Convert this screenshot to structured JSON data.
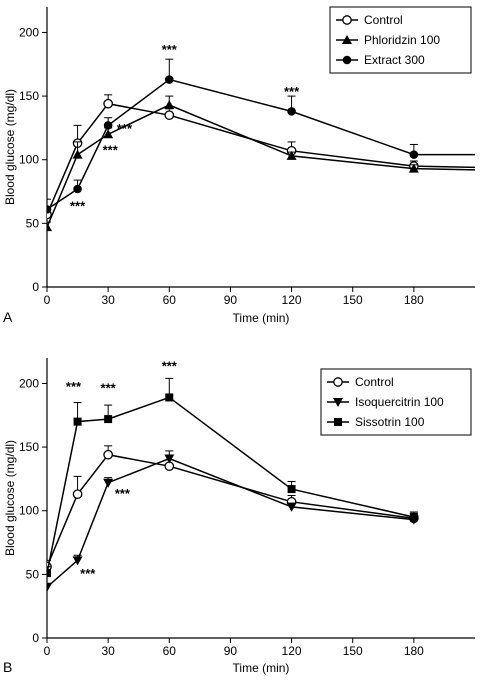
{
  "chart_data": [
    {
      "panel_label": "A",
      "type": "line",
      "xlabel": "Time (min)",
      "ylabel": "Blood glucose (mg/dl)",
      "xlim": [
        0,
        210
      ],
      "ylim": [
        0,
        220
      ],
      "xticks": [
        0,
        30,
        60,
        90,
        120,
        150,
        180
      ],
      "yticks": [
        0,
        50,
        100,
        150,
        200
      ],
      "x": [
        0,
        15,
        30,
        60,
        120,
        180,
        210
      ],
      "legend_position": "top-right",
      "series": [
        {
          "name": "Control",
          "marker": "circle-open",
          "values": [
            57,
            113,
            144,
            135,
            107,
            95,
            94
          ],
          "err": [
            6,
            14,
            7,
            5,
            7,
            4,
            null
          ]
        },
        {
          "name": "Phloridzin 100",
          "marker": "triangle-up",
          "values": [
            47,
            104,
            120,
            143,
            103,
            93,
            92
          ],
          "err": [
            4,
            10,
            5,
            7,
            3,
            3,
            null
          ]
        },
        {
          "name": "Extract 300",
          "marker": "circle-filled",
          "values": [
            61,
            77,
            127,
            163,
            138,
            104,
            104
          ],
          "err": [
            8,
            7,
            6,
            16,
            12,
            8,
            null
          ]
        }
      ],
      "annotations": [
        {
          "text": "***",
          "x": 60,
          "y": 183
        },
        {
          "text": "***",
          "x": 120,
          "y": 150
        },
        {
          "text": "***",
          "x": 15,
          "y": 60
        },
        {
          "text": "***",
          "x": 31,
          "y": 104
        },
        {
          "text": "***",
          "x": 38,
          "y": 121
        }
      ]
    },
    {
      "panel_label": "B",
      "type": "line",
      "xlabel": "Time (min)",
      "ylabel": "Blood glucose (mg/dl)",
      "xlim": [
        0,
        210
      ],
      "ylim": [
        0,
        220
      ],
      "xticks": [
        0,
        30,
        60,
        90,
        120,
        150,
        180
      ],
      "yticks": [
        0,
        50,
        100,
        150,
        200
      ],
      "x": [
        0,
        15,
        30,
        60,
        120,
        180
      ],
      "legend_position": "top-right",
      "series": [
        {
          "name": "Control",
          "marker": "circle-open",
          "values": [
            56,
            113,
            144,
            135,
            107,
            94
          ],
          "err": [
            5,
            14,
            7,
            5,
            5,
            4
          ]
        },
        {
          "name": "Isoquercitrin 100",
          "marker": "triangle-down",
          "values": [
            40,
            61,
            122,
            141,
            103,
            93
          ],
          "err": [
            3,
            4,
            4,
            6,
            3,
            3
          ]
        },
        {
          "name": "Sissotrin 100",
          "marker": "square-filled",
          "values": [
            51,
            170,
            172,
            189,
            117,
            95
          ],
          "err": [
            5,
            15,
            11,
            15,
            6,
            4
          ]
        }
      ],
      "annotations": [
        {
          "text": "***",
          "x": 13,
          "y": 194
        },
        {
          "text": "***",
          "x": 30,
          "y": 193
        },
        {
          "text": "***",
          "x": 60,
          "y": 210
        },
        {
          "text": "***",
          "x": 20,
          "y": 47
        },
        {
          "text": "***",
          "x": 37,
          "y": 110
        }
      ]
    }
  ]
}
